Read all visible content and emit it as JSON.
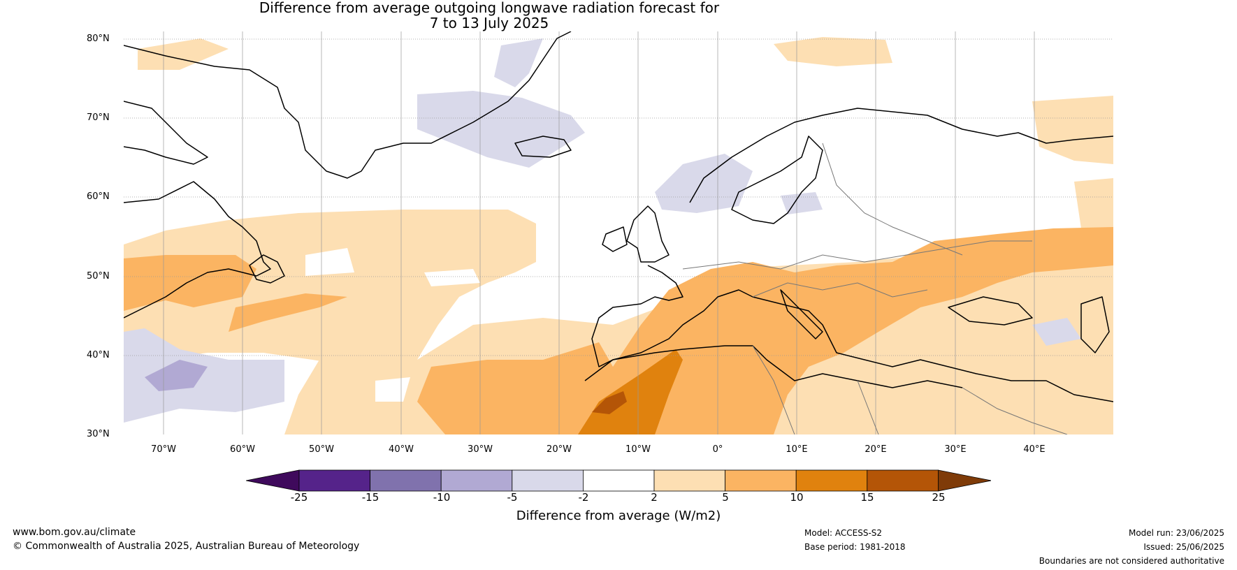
{
  "title": {
    "line1": "Difference from average outgoing longwave radiation forecast for",
    "line2": "7 to 13 July 2025"
  },
  "map": {
    "lat_labels": [
      "80°N",
      "70°N",
      "60°N",
      "50°N",
      "40°N",
      "30°N"
    ],
    "lon_labels": [
      "70°W",
      "60°W",
      "50°W",
      "40°W",
      "30°W",
      "20°W",
      "10°W",
      "0°",
      "10°E",
      "20°E",
      "30°E",
      "40°E"
    ]
  },
  "colorbar": {
    "title": "Difference from average (W/m2)",
    "tick_labels": [
      "-25",
      "-15",
      "-10",
      "-5",
      "-2",
      "2",
      "5",
      "10",
      "15",
      "25"
    ],
    "colors": [
      "#3f0a5c",
      "#55238a",
      "#8072ad",
      "#b1a9d3",
      "#d9d9ea",
      "#ffffff",
      "#fddfb3",
      "#fbb462",
      "#e0820e",
      "#b45507",
      "#7f3b08"
    ]
  },
  "footer": {
    "url": "www.bom.gov.au/climate",
    "copyright": "© Commonwealth of Australia 2025, Australian Bureau of Meteorology",
    "model": "Model: ACCESS-S2",
    "base_period": "Base period: 1981-2018",
    "model_run": "Model run: 23/06/2025",
    "issued": "Issued: 25/06/2025",
    "disclaimer": "Boundaries are not considered authoritative"
  }
}
